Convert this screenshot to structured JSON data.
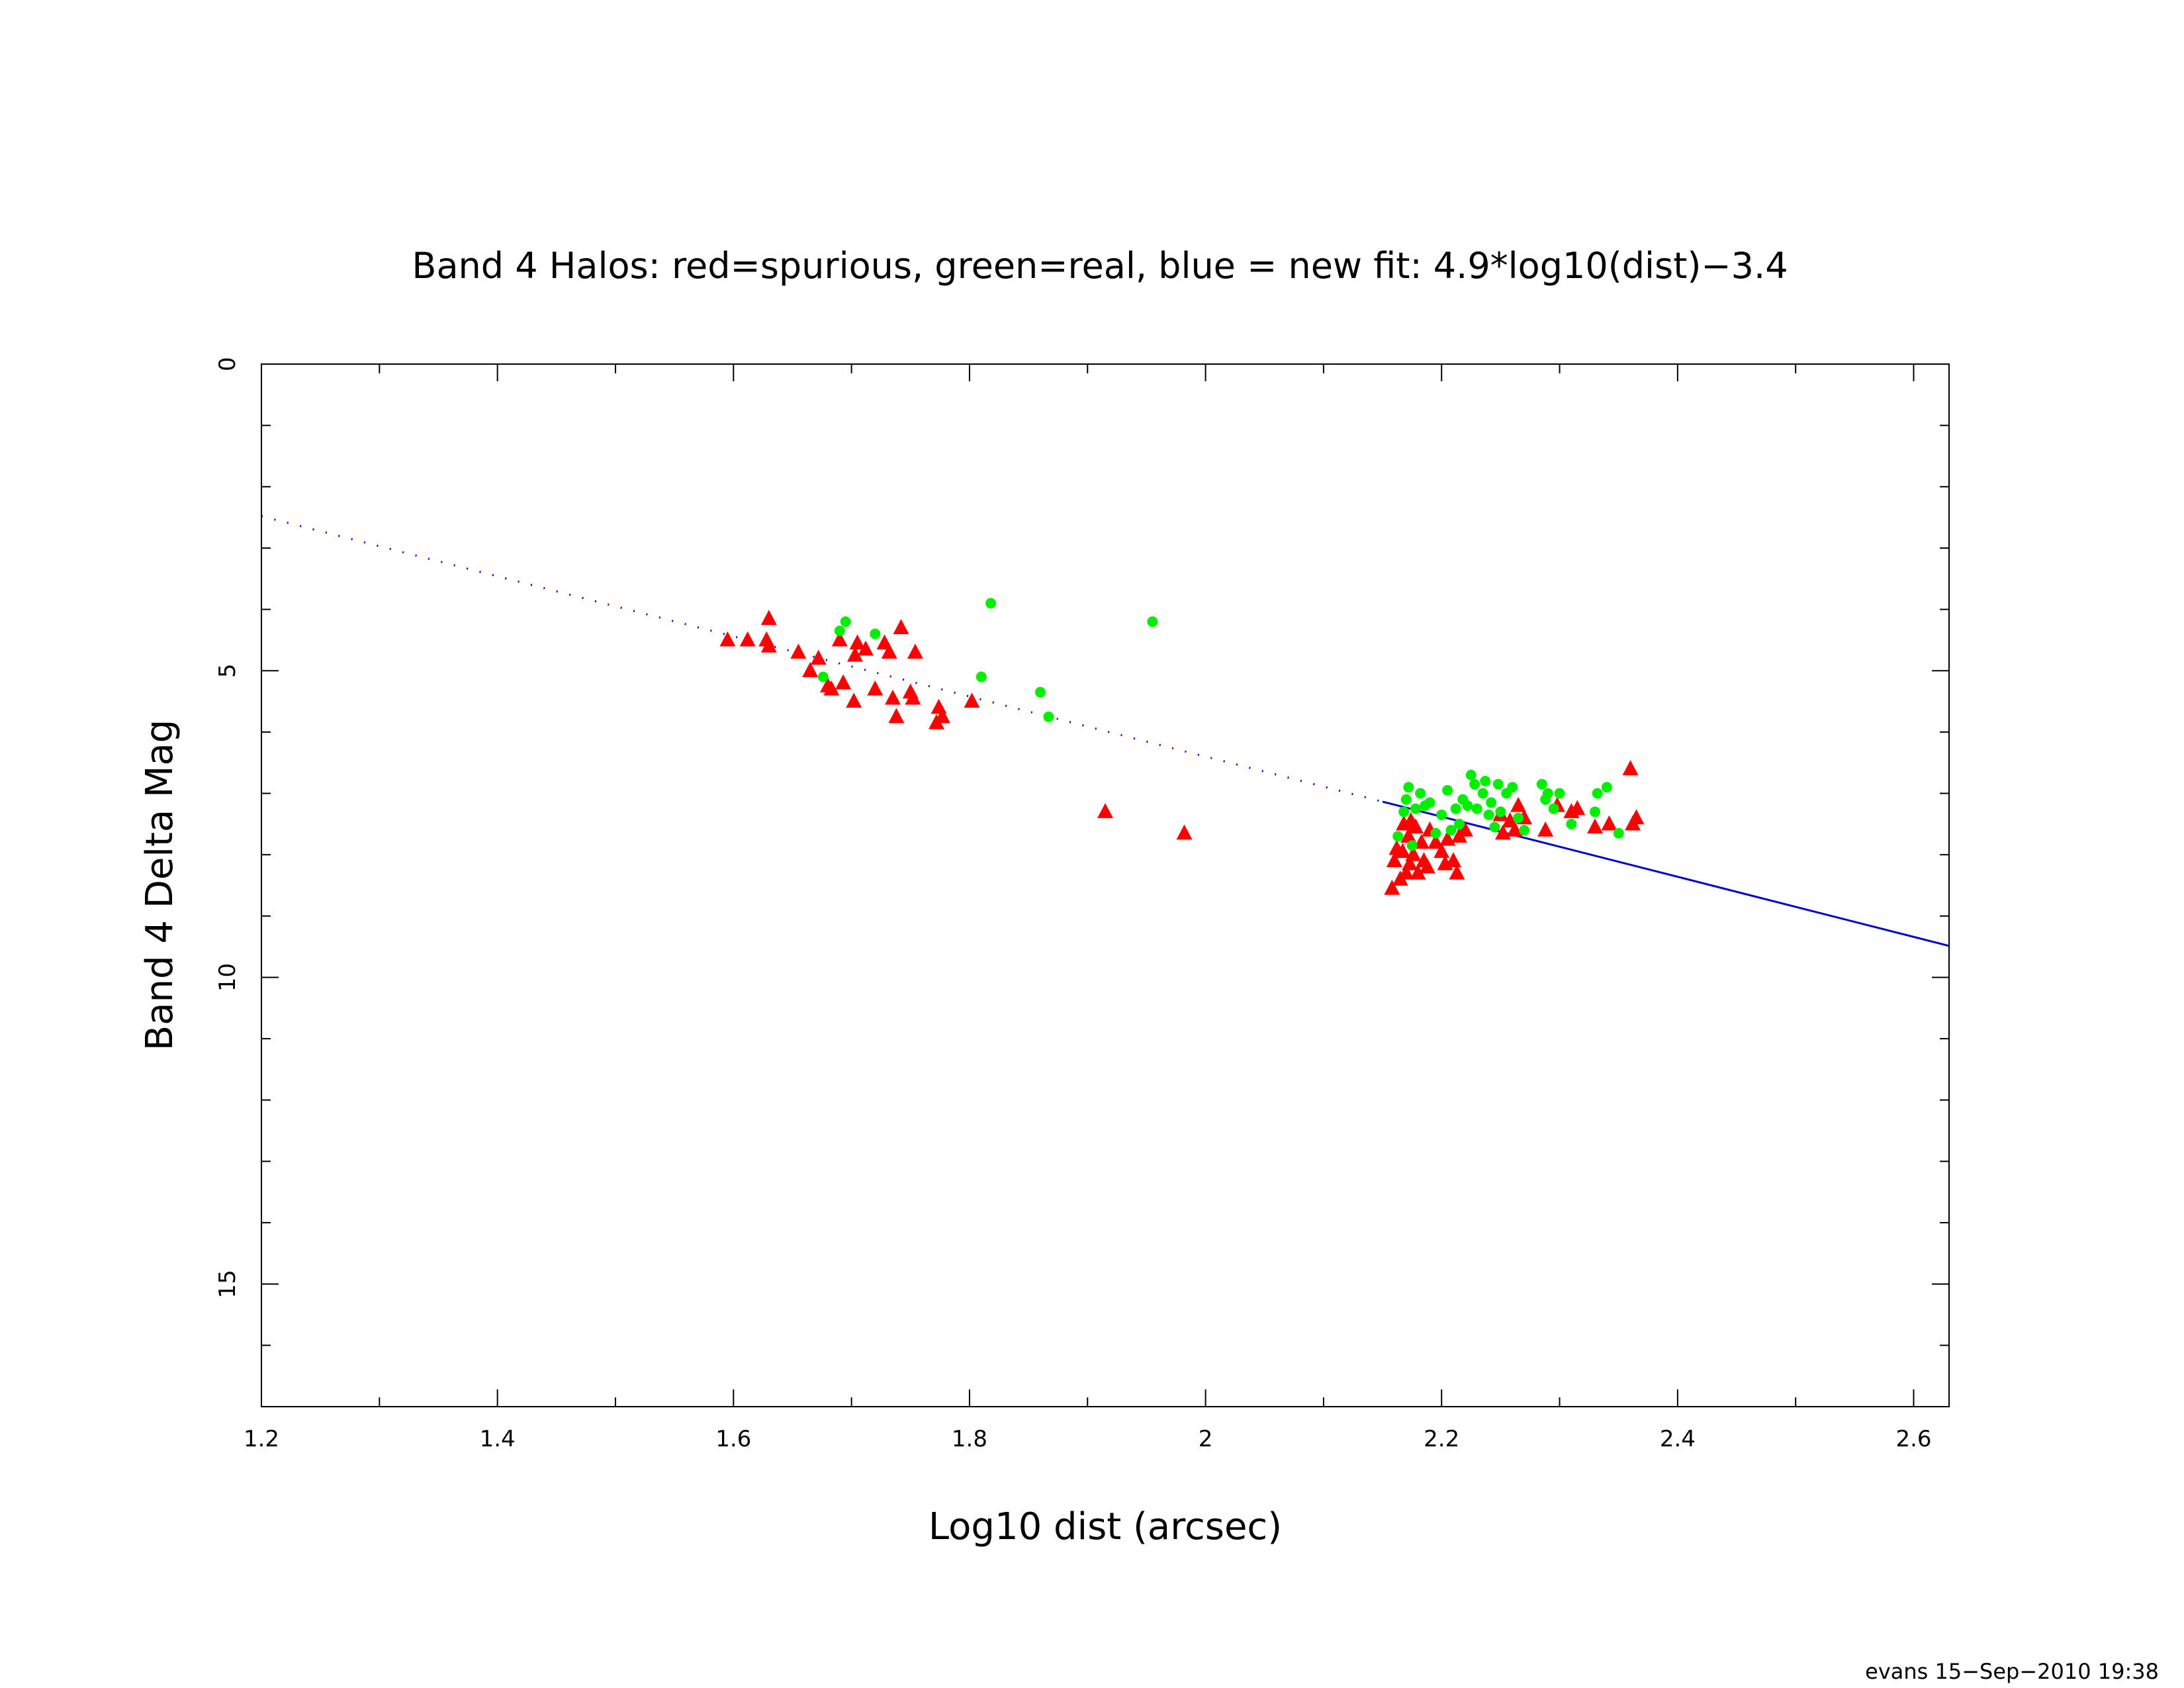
{
  "chart_data": {
    "type": "scatter",
    "title": "Band 4 Halos: red=spurious, green=real, blue = new fit: 4.9*log10(dist)−3.4",
    "xlabel": "Log10 dist (arcsec)",
    "ylabel": "Band 4 Delta Mag",
    "xlim": [
      1.2,
      2.63
    ],
    "ylim": [
      0,
      17
    ],
    "y_inverted": true,
    "x_ticks": [
      1.2,
      1.4,
      1.6,
      1.8,
      2,
      2.2,
      2.4,
      2.6
    ],
    "x_tick_labels": [
      "1.2",
      "1.4",
      "1.6",
      "1.8",
      "2",
      "2.2",
      "2.4",
      "2.6"
    ],
    "y_ticks": [
      0,
      5,
      10,
      15
    ],
    "y_tick_labels": [
      "0",
      "5",
      "10",
      "15"
    ],
    "grid": false,
    "colors": {
      "spurious": "#ff0000",
      "real": "#00ee00",
      "fit": "#0000cc"
    },
    "series": [
      {
        "marker": "triangle",
        "color": "#ff0000",
        "points": [
          [
            1.595,
            4.5
          ],
          [
            1.612,
            4.5
          ],
          [
            1.628,
            4.5
          ],
          [
            1.63,
            4.6
          ],
          [
            1.63,
            4.15
          ],
          [
            1.655,
            4.7
          ],
          [
            1.665,
            5.0
          ],
          [
            1.672,
            4.8
          ],
          [
            1.68,
            5.25
          ],
          [
            1.683,
            5.3
          ],
          [
            1.69,
            4.5
          ],
          [
            1.693,
            5.2
          ],
          [
            1.702,
            5.5
          ],
          [
            1.703,
            4.75
          ],
          [
            1.705,
            4.55
          ],
          [
            1.712,
            4.65
          ],
          [
            1.72,
            5.3
          ],
          [
            1.728,
            4.55
          ],
          [
            1.732,
            4.7
          ],
          [
            1.735,
            5.45
          ],
          [
            1.738,
            5.75
          ],
          [
            1.742,
            4.3
          ],
          [
            1.75,
            5.35
          ],
          [
            1.752,
            5.45
          ],
          [
            1.754,
            4.7
          ],
          [
            1.772,
            5.85
          ],
          [
            1.774,
            5.6
          ],
          [
            1.777,
            5.75
          ],
          [
            1.802,
            5.5
          ],
          [
            1.915,
            7.3
          ],
          [
            1.982,
            7.65
          ],
          [
            2.158,
            8.55
          ],
          [
            2.16,
            8.1
          ],
          [
            2.162,
            7.9
          ],
          [
            2.165,
            8.4
          ],
          [
            2.167,
            7.95
          ],
          [
            2.168,
            7.5
          ],
          [
            2.17,
            8.3
          ],
          [
            2.172,
            7.7
          ],
          [
            2.173,
            8.15
          ],
          [
            2.174,
            7.45
          ],
          [
            2.176,
            8.0
          ],
          [
            2.178,
            7.55
          ],
          [
            2.18,
            8.3
          ],
          [
            2.183,
            7.8
          ],
          [
            2.185,
            8.1
          ],
          [
            2.188,
            8.2
          ],
          [
            2.19,
            7.6
          ],
          [
            2.195,
            7.8
          ],
          [
            2.2,
            7.95
          ],
          [
            2.203,
            8.15
          ],
          [
            2.205,
            7.75
          ],
          [
            2.21,
            8.1
          ],
          [
            2.213,
            8.3
          ],
          [
            2.215,
            7.7
          ],
          [
            2.22,
            7.6
          ],
          [
            2.25,
            7.35
          ],
          [
            2.252,
            7.65
          ],
          [
            2.258,
            7.45
          ],
          [
            2.262,
            7.6
          ],
          [
            2.265,
            7.2
          ],
          [
            2.27,
            7.4
          ],
          [
            2.288,
            7.6
          ],
          [
            2.298,
            7.2
          ],
          [
            2.31,
            7.3
          ],
          [
            2.315,
            7.25
          ],
          [
            2.33,
            7.55
          ],
          [
            2.342,
            7.5
          ],
          [
            2.36,
            6.6
          ],
          [
            2.362,
            7.5
          ],
          [
            2.365,
            7.4
          ]
        ]
      },
      {
        "marker": "circle",
        "color": "#00ee00",
        "points": [
          [
            1.676,
            5.1
          ],
          [
            1.69,
            4.35
          ],
          [
            1.695,
            4.2
          ],
          [
            1.72,
            4.4
          ],
          [
            1.81,
            5.1
          ],
          [
            1.818,
            3.9
          ],
          [
            1.86,
            5.35
          ],
          [
            1.867,
            5.75
          ],
          [
            1.955,
            4.2
          ],
          [
            2.163,
            7.7
          ],
          [
            2.168,
            7.3
          ],
          [
            2.17,
            7.1
          ],
          [
            2.172,
            6.9
          ],
          [
            2.175,
            7.85
          ],
          [
            2.178,
            7.25
          ],
          [
            2.182,
            7.0
          ],
          [
            2.186,
            7.2
          ],
          [
            2.19,
            7.15
          ],
          [
            2.195,
            7.65
          ],
          [
            2.2,
            7.35
          ],
          [
            2.205,
            6.95
          ],
          [
            2.208,
            7.6
          ],
          [
            2.212,
            7.25
          ],
          [
            2.215,
            7.5
          ],
          [
            2.218,
            7.1
          ],
          [
            2.222,
            7.2
          ],
          [
            2.225,
            6.7
          ],
          [
            2.228,
            6.85
          ],
          [
            2.23,
            7.25
          ],
          [
            2.235,
            7.0
          ],
          [
            2.237,
            6.8
          ],
          [
            2.24,
            7.35
          ],
          [
            2.242,
            7.15
          ],
          [
            2.245,
            7.55
          ],
          [
            2.248,
            6.85
          ],
          [
            2.25,
            7.3
          ],
          [
            2.255,
            7.0
          ],
          [
            2.26,
            6.9
          ],
          [
            2.265,
            7.4
          ],
          [
            2.27,
            7.6
          ],
          [
            2.285,
            6.85
          ],
          [
            2.288,
            7.1
          ],
          [
            2.29,
            7.0
          ],
          [
            2.295,
            7.25
          ],
          [
            2.3,
            7.0
          ],
          [
            2.31,
            7.5
          ],
          [
            2.33,
            7.3
          ],
          [
            2.332,
            7.0
          ],
          [
            2.34,
            6.9
          ],
          [
            2.35,
            7.65
          ]
        ]
      }
    ],
    "fit_line": {
      "color": "#0000cc",
      "slope": 4.9,
      "intercept": -3.4,
      "dotted_x_range": [
        1.2,
        2.15
      ],
      "solid_x_range": [
        2.15,
        2.63
      ]
    },
    "footer": "evans 15−Sep−2010 19:38"
  }
}
